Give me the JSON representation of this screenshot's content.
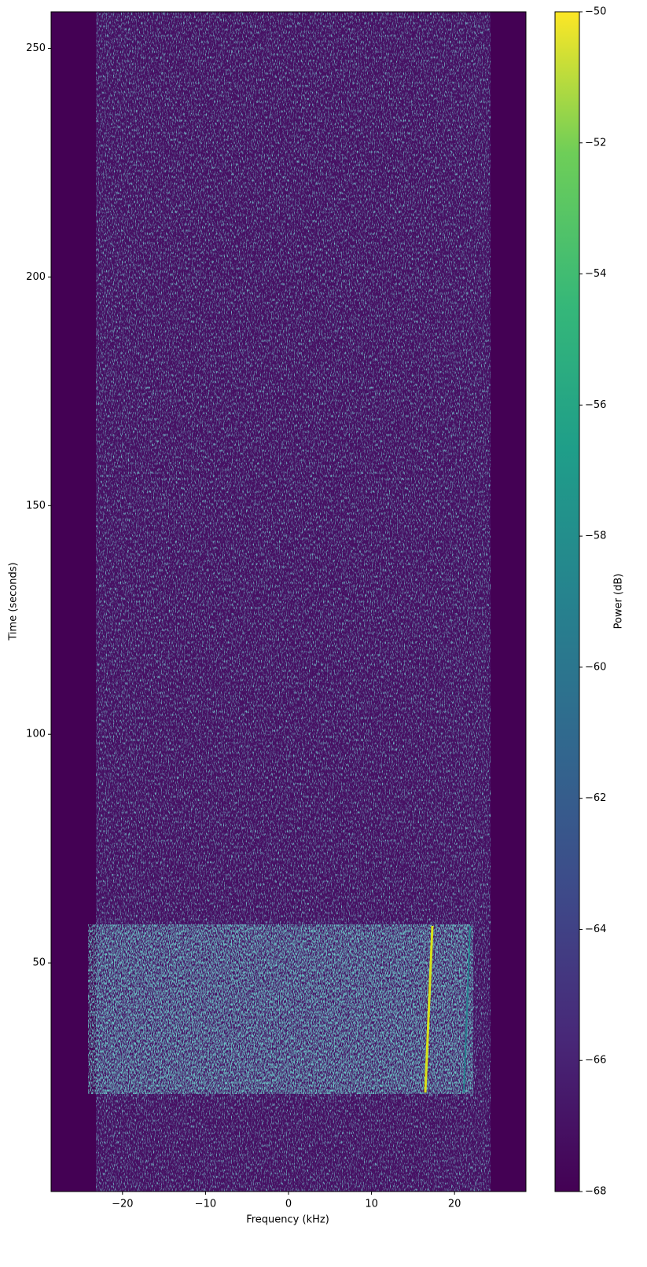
{
  "chart_data": {
    "type": "spectrogram",
    "xlabel": "Frequency (kHz)",
    "ylabel": "Time (seconds)",
    "xlim": [
      -28.6,
      28.6
    ],
    "ylim": [
      0,
      258
    ],
    "xticks": [
      {
        "value": -20,
        "label": "−20"
      },
      {
        "value": -10,
        "label": "−10"
      },
      0,
      10,
      20
    ],
    "yticks": [
      50,
      100,
      150,
      200,
      250
    ],
    "colormap": "viridis",
    "colorbar": {
      "label": "Power (dB)",
      "clim": [
        -68,
        -50
      ],
      "ticks": [
        {
          "value": -68,
          "label": "−68"
        },
        {
          "value": -66,
          "label": "−66"
        },
        {
          "value": -64,
          "label": "−64"
        },
        {
          "value": -62,
          "label": "−62"
        },
        {
          "value": -60,
          "label": "−60"
        },
        {
          "value": -58,
          "label": "−58"
        },
        {
          "value": -56,
          "label": "−56"
        },
        {
          "value": -54,
          "label": "−54"
        },
        {
          "value": -52,
          "label": "−52"
        },
        {
          "value": -50,
          "label": "−50"
        }
      ]
    }
  }
}
